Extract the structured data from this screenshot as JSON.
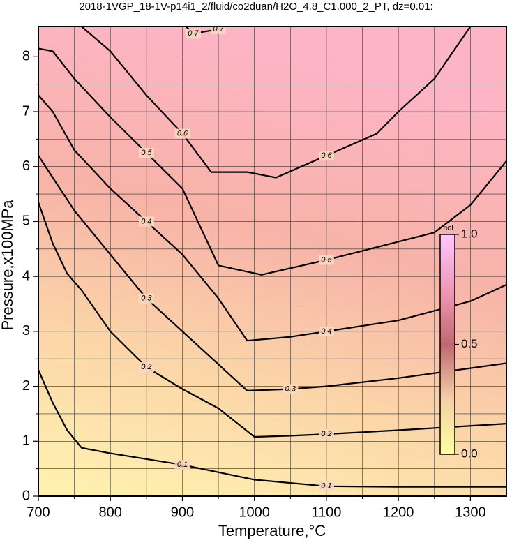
{
  "chart_data": {
    "type": "contour",
    "title": "2018-1VGP_18-1V-p14i1_2/fluid/co2duan/H2O_4.8_C1.000_2_PT, dz=0.01:",
    "x_label": "Temperature,°C",
    "y_label": "Pressure,x100MPa",
    "xlim": [
      700,
      1350
    ],
    "ylim": [
      0,
      8.55
    ],
    "xticks": [
      700,
      800,
      900,
      1000,
      1100,
      1200,
      1300
    ],
    "yticks": [
      0,
      1,
      2,
      3,
      4,
      5,
      6,
      7,
      8
    ],
    "x_minor": [
      750,
      850,
      950,
      1050,
      1150,
      1250
    ],
    "y_minor": [
      0.5,
      1.5,
      2.5,
      3.5,
      4.5,
      5.5,
      6.5,
      7.5
    ],
    "grid": true,
    "contours": [
      {
        "level": 0.1,
        "x": [
          700,
          720,
          740,
          760,
          800,
          900,
          1000,
          1100,
          1200,
          1350
        ],
        "y": [
          2.3,
          1.7,
          1.2,
          0.88,
          0.78,
          0.57,
          0.3,
          0.18,
          0.17,
          0.17
        ],
        "label_at": [
          5,
          7
        ]
      },
      {
        "level": 0.2,
        "x": [
          700,
          720,
          740,
          760,
          800,
          850,
          900,
          950,
          1000,
          1050,
          1100,
          1200,
          1350
        ],
        "y": [
          5.35,
          4.6,
          4.05,
          3.75,
          3.0,
          2.35,
          1.95,
          1.6,
          1.08,
          1.1,
          1.13,
          1.2,
          1.32
        ],
        "label_at": [
          5,
          10
        ]
      },
      {
        "level": 0.3,
        "x": [
          700,
          720,
          750,
          800,
          850,
          900,
          950,
          990,
          1050,
          1100,
          1200,
          1350
        ],
        "y": [
          6.2,
          5.8,
          5.2,
          4.4,
          3.6,
          3.0,
          2.4,
          1.92,
          1.95,
          2.0,
          2.15,
          2.42
        ],
        "label_at": [
          4,
          8
        ]
      },
      {
        "level": 0.4,
        "x": [
          700,
          720,
          750,
          800,
          850,
          900,
          950,
          990,
          1050,
          1100,
          1200,
          1300,
          1350
        ],
        "y": [
          7.3,
          7.0,
          6.3,
          5.6,
          5.0,
          4.4,
          3.6,
          2.83,
          2.9,
          3.0,
          3.2,
          3.55,
          3.85
        ],
        "label_at": [
          4,
          9
        ]
      },
      {
        "level": 0.5,
        "x": [
          700,
          720,
          750,
          800,
          850,
          900,
          950,
          1010,
          1100,
          1175,
          1250,
          1300,
          1350
        ],
        "y": [
          8.15,
          8.1,
          7.6,
          6.9,
          6.25,
          5.6,
          4.2,
          4.03,
          4.3,
          4.55,
          4.8,
          5.3,
          6.1
        ],
        "label_at": [
          4,
          8
        ]
      },
      {
        "level": 0.6,
        "x": [
          760,
          800,
          850,
          900,
          940,
          990,
          1030,
          1100,
          1170,
          1200,
          1250,
          1300
        ],
        "y": [
          8.55,
          8.1,
          7.3,
          6.6,
          5.9,
          5.9,
          5.8,
          6.2,
          6.6,
          7.0,
          7.6,
          8.55
        ],
        "label_at": [
          3,
          7
        ]
      },
      {
        "level": 0.7,
        "x": [
          905,
          915,
          950,
          960
        ],
        "y": [
          8.55,
          8.42,
          8.5,
          8.55
        ],
        "label_at": [
          1,
          2
        ]
      }
    ],
    "colorbar": {
      "unit": "mol",
      "lim": [
        0,
        1
      ],
      "ticks": [
        {
          "value": 0,
          "label": "0.0"
        },
        0.5,
        {
          "value": 1,
          "label": "1.0"
        }
      ]
    }
  }
}
